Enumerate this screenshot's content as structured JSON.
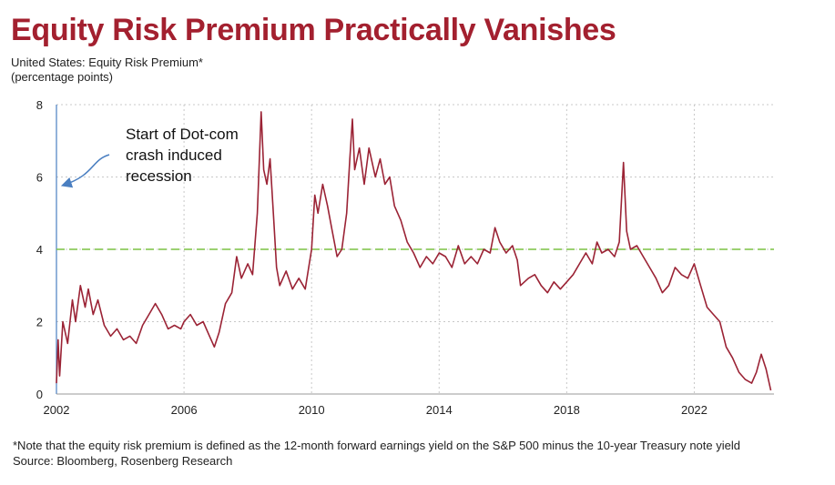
{
  "title": "Equity Risk Premium Practically Vanishes",
  "subtitle_line1": "United States: Equity Risk Premium*",
  "subtitle_line2": "(percentage points)",
  "footnote_line1": "*Note that the equity risk premium is defined as the 12-month forward earnings yield on the S&P 500 minus the 10-year Treasury note yield",
  "footnote_line2": "Source: Bloomberg, Rosenberg Research",
  "colors": {
    "title": "#a3202f",
    "series": "#9b2335",
    "reference": "#7cc242",
    "annotation_arrow": "#4a7fc1",
    "grid": "#c8c8c8"
  },
  "chart_data": {
    "type": "line",
    "title": "Equity Risk Premium Practically Vanishes",
    "ylabel": "(percentage points)",
    "xlim": [
      2002,
      2024.5
    ],
    "ylim": [
      0,
      8
    ],
    "x_ticks": [
      2002,
      2006,
      2010,
      2014,
      2018,
      2022
    ],
    "y_ticks": [
      0,
      2,
      4,
      6,
      8
    ],
    "grid": true,
    "reference_line": {
      "y": 4,
      "style": "dashed"
    },
    "annotation": {
      "lines": [
        "Start of Dot-com",
        "crash induced",
        "recession"
      ],
      "arrow_to": [
        2002.05,
        5.8
      ]
    },
    "series": [
      {
        "points": [
          [
            2002.0,
            0.3
          ],
          [
            2002.05,
            1.5
          ],
          [
            2002.1,
            0.5
          ],
          [
            2002.2,
            2.0
          ],
          [
            2002.35,
            1.4
          ],
          [
            2002.5,
            2.6
          ],
          [
            2002.6,
            2.0
          ],
          [
            2002.75,
            3.0
          ],
          [
            2002.9,
            2.4
          ],
          [
            2003.0,
            2.9
          ],
          [
            2003.15,
            2.2
          ],
          [
            2003.3,
            2.6
          ],
          [
            2003.5,
            1.9
          ],
          [
            2003.7,
            1.6
          ],
          [
            2003.9,
            1.8
          ],
          [
            2004.1,
            1.5
          ],
          [
            2004.3,
            1.6
          ],
          [
            2004.5,
            1.4
          ],
          [
            2004.7,
            1.9
          ],
          [
            2004.9,
            2.2
          ],
          [
            2005.1,
            2.5
          ],
          [
            2005.3,
            2.2
          ],
          [
            2005.5,
            1.8
          ],
          [
            2005.7,
            1.9
          ],
          [
            2005.9,
            1.8
          ],
          [
            2006.0,
            2.0
          ],
          [
            2006.2,
            2.2
          ],
          [
            2006.4,
            1.9
          ],
          [
            2006.6,
            2.0
          ],
          [
            2006.8,
            1.6
          ],
          [
            2006.95,
            1.3
          ],
          [
            2007.1,
            1.7
          ],
          [
            2007.3,
            2.5
          ],
          [
            2007.5,
            2.8
          ],
          [
            2007.65,
            3.8
          ],
          [
            2007.8,
            3.2
          ],
          [
            2008.0,
            3.6
          ],
          [
            2008.15,
            3.3
          ],
          [
            2008.3,
            5.0
          ],
          [
            2008.42,
            7.8
          ],
          [
            2008.5,
            6.2
          ],
          [
            2008.6,
            5.8
          ],
          [
            2008.7,
            6.5
          ],
          [
            2008.8,
            5.0
          ],
          [
            2008.9,
            3.5
          ],
          [
            2009.0,
            3.0
          ],
          [
            2009.2,
            3.4
          ],
          [
            2009.4,
            2.9
          ],
          [
            2009.6,
            3.2
          ],
          [
            2009.8,
            2.9
          ],
          [
            2010.0,
            4.0
          ],
          [
            2010.1,
            5.5
          ],
          [
            2010.2,
            5.0
          ],
          [
            2010.35,
            5.8
          ],
          [
            2010.5,
            5.2
          ],
          [
            2010.65,
            4.5
          ],
          [
            2010.8,
            3.8
          ],
          [
            2010.95,
            4.0
          ],
          [
            2011.1,
            5.0
          ],
          [
            2011.2,
            6.5
          ],
          [
            2011.28,
            7.6
          ],
          [
            2011.35,
            6.2
          ],
          [
            2011.5,
            6.8
          ],
          [
            2011.65,
            5.8
          ],
          [
            2011.8,
            6.8
          ],
          [
            2012.0,
            6.0
          ],
          [
            2012.15,
            6.5
          ],
          [
            2012.3,
            5.8
          ],
          [
            2012.45,
            6.0
          ],
          [
            2012.6,
            5.2
          ],
          [
            2012.8,
            4.8
          ],
          [
            2013.0,
            4.2
          ],
          [
            2013.2,
            3.9
          ],
          [
            2013.4,
            3.5
          ],
          [
            2013.6,
            3.8
          ],
          [
            2013.8,
            3.6
          ],
          [
            2014.0,
            3.9
          ],
          [
            2014.2,
            3.8
          ],
          [
            2014.4,
            3.5
          ],
          [
            2014.6,
            4.1
          ],
          [
            2014.8,
            3.6
          ],
          [
            2015.0,
            3.8
          ],
          [
            2015.2,
            3.6
          ],
          [
            2015.4,
            4.0
          ],
          [
            2015.6,
            3.9
          ],
          [
            2015.75,
            4.6
          ],
          [
            2015.9,
            4.2
          ],
          [
            2016.1,
            3.9
          ],
          [
            2016.3,
            4.1
          ],
          [
            2016.45,
            3.7
          ],
          [
            2016.55,
            3.0
          ],
          [
            2016.8,
            3.2
          ],
          [
            2017.0,
            3.3
          ],
          [
            2017.2,
            3.0
          ],
          [
            2017.4,
            2.8
          ],
          [
            2017.6,
            3.1
          ],
          [
            2017.8,
            2.9
          ],
          [
            2018.0,
            3.1
          ],
          [
            2018.2,
            3.3
          ],
          [
            2018.4,
            3.6
          ],
          [
            2018.6,
            3.9
          ],
          [
            2018.8,
            3.6
          ],
          [
            2018.95,
            4.2
          ],
          [
            2019.1,
            3.9
          ],
          [
            2019.3,
            4.0
          ],
          [
            2019.5,
            3.8
          ],
          [
            2019.65,
            4.2
          ],
          [
            2019.78,
            6.4
          ],
          [
            2019.88,
            4.5
          ],
          [
            2020.0,
            4.0
          ],
          [
            2020.2,
            4.1
          ],
          [
            2020.4,
            3.8
          ],
          [
            2020.6,
            3.5
          ],
          [
            2020.8,
            3.2
          ],
          [
            2021.0,
            2.8
          ],
          [
            2021.2,
            3.0
          ],
          [
            2021.4,
            3.5
          ],
          [
            2021.6,
            3.3
          ],
          [
            2021.8,
            3.2
          ],
          [
            2022.0,
            3.6
          ],
          [
            2022.2,
            3.0
          ],
          [
            2022.4,
            2.4
          ],
          [
            2022.6,
            2.2
          ],
          [
            2022.8,
            2.0
          ],
          [
            2023.0,
            1.3
          ],
          [
            2023.2,
            1.0
          ],
          [
            2023.4,
            0.6
          ],
          [
            2023.6,
            0.4
          ],
          [
            2023.8,
            0.3
          ],
          [
            2023.95,
            0.6
          ],
          [
            2024.1,
            1.1
          ],
          [
            2024.25,
            0.7
          ],
          [
            2024.4,
            0.1
          ]
        ]
      }
    ]
  }
}
